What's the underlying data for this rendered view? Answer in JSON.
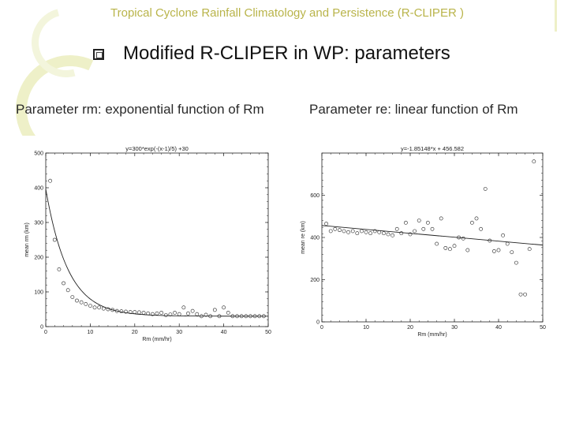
{
  "header": {
    "title": "Tropical Cyclone Rainfall Climatology and Persistence (R-CLIPER )",
    "heading": "Modified R-CLIPER in WP: parameters"
  },
  "captions": {
    "left": "Parameter rm: exponential function of Rm",
    "right": "Parameter re: linear function of Rm"
  },
  "colors": {
    "title": "#b9b44a",
    "ink": "#222222"
  },
  "chart_data": [
    {
      "type": "scatter",
      "title": "y=300*exp(-(x-1)/5) +30",
      "xlabel": "Rm (mm/hr)",
      "ylabel": "mean rm (km)",
      "xlim": [
        0,
        50
      ],
      "ylim": [
        0,
        500
      ],
      "xticks": [
        "0",
        "10",
        "20",
        "30",
        "40",
        "50"
      ],
      "yticks": [
        "0",
        "100",
        "200",
        "300",
        "400",
        "500"
      ],
      "fit": {
        "type": "exponential",
        "a": 300,
        "x0": 1,
        "scale": 5,
        "c": 30
      },
      "points": [
        [
          1,
          420
        ],
        [
          2,
          250
        ],
        [
          3,
          165
        ],
        [
          4,
          125
        ],
        [
          5,
          105
        ],
        [
          6,
          85
        ],
        [
          7,
          75
        ],
        [
          8,
          70
        ],
        [
          9,
          65
        ],
        [
          10,
          60
        ],
        [
          11,
          55
        ],
        [
          12,
          55
        ],
        [
          13,
          52
        ],
        [
          14,
          50
        ],
        [
          15,
          48
        ],
        [
          16,
          45
        ],
        [
          17,
          44
        ],
        [
          18,
          43
        ],
        [
          19,
          42
        ],
        [
          20,
          42
        ],
        [
          21,
          41
        ],
        [
          22,
          40
        ],
        [
          23,
          38
        ],
        [
          24,
          36
        ],
        [
          25,
          38
        ],
        [
          26,
          40
        ],
        [
          27,
          33
        ],
        [
          28,
          35
        ],
        [
          29,
          40
        ],
        [
          30,
          36
        ],
        [
          31,
          55
        ],
        [
          32,
          38
        ],
        [
          33,
          45
        ],
        [
          34,
          36
        ],
        [
          35,
          30
        ],
        [
          36,
          34
        ],
        [
          37,
          30
        ],
        [
          38,
          48
        ],
        [
          39,
          30
        ],
        [
          40,
          55
        ],
        [
          41,
          40
        ],
        [
          42,
          30
        ],
        [
          43,
          30
        ],
        [
          44,
          30
        ],
        [
          45,
          30
        ],
        [
          46,
          30
        ],
        [
          47,
          30
        ],
        [
          48,
          30
        ],
        [
          49,
          30
        ]
      ]
    },
    {
      "type": "scatter",
      "title": "y=-1.85148*x + 456.582",
      "xlabel": "Rm (mm/hr)",
      "ylabel": "mean re (km)",
      "xlim": [
        0,
        50
      ],
      "ylim": [
        0,
        800
      ],
      "xticks": [
        "0",
        "10",
        "20",
        "30",
        "40",
        "50"
      ],
      "yticks": [
        "0",
        "200",
        "400",
        "600"
      ],
      "fit": {
        "type": "linear",
        "slope": -1.85148,
        "intercept": 456.582
      },
      "points": [
        [
          1,
          465
        ],
        [
          2,
          430
        ],
        [
          3,
          440
        ],
        [
          4,
          435
        ],
        [
          5,
          430
        ],
        [
          6,
          425
        ],
        [
          7,
          430
        ],
        [
          8,
          420
        ],
        [
          9,
          430
        ],
        [
          10,
          425
        ],
        [
          11,
          420
        ],
        [
          12,
          430
        ],
        [
          13,
          425
        ],
        [
          14,
          420
        ],
        [
          15,
          415
        ],
        [
          16,
          410
        ],
        [
          17,
          440
        ],
        [
          18,
          420
        ],
        [
          19,
          470
        ],
        [
          20,
          415
        ],
        [
          21,
          430
        ],
        [
          22,
          480
        ],
        [
          23,
          440
        ],
        [
          24,
          470
        ],
        [
          25,
          440
        ],
        [
          26,
          370
        ],
        [
          27,
          490
        ],
        [
          28,
          350
        ],
        [
          29,
          345
        ],
        [
          30,
          360
        ],
        [
          31,
          400
        ],
        [
          32,
          395
        ],
        [
          33,
          340
        ],
        [
          34,
          470
        ],
        [
          35,
          490
        ],
        [
          36,
          440
        ],
        [
          37,
          630
        ],
        [
          38,
          385
        ],
        [
          39,
          335
        ],
        [
          40,
          340
        ],
        [
          41,
          410
        ],
        [
          42,
          370
        ],
        [
          43,
          330
        ],
        [
          44,
          280
        ],
        [
          45,
          130
        ],
        [
          46,
          130
        ],
        [
          47,
          345
        ],
        [
          48,
          760
        ]
      ]
    }
  ]
}
